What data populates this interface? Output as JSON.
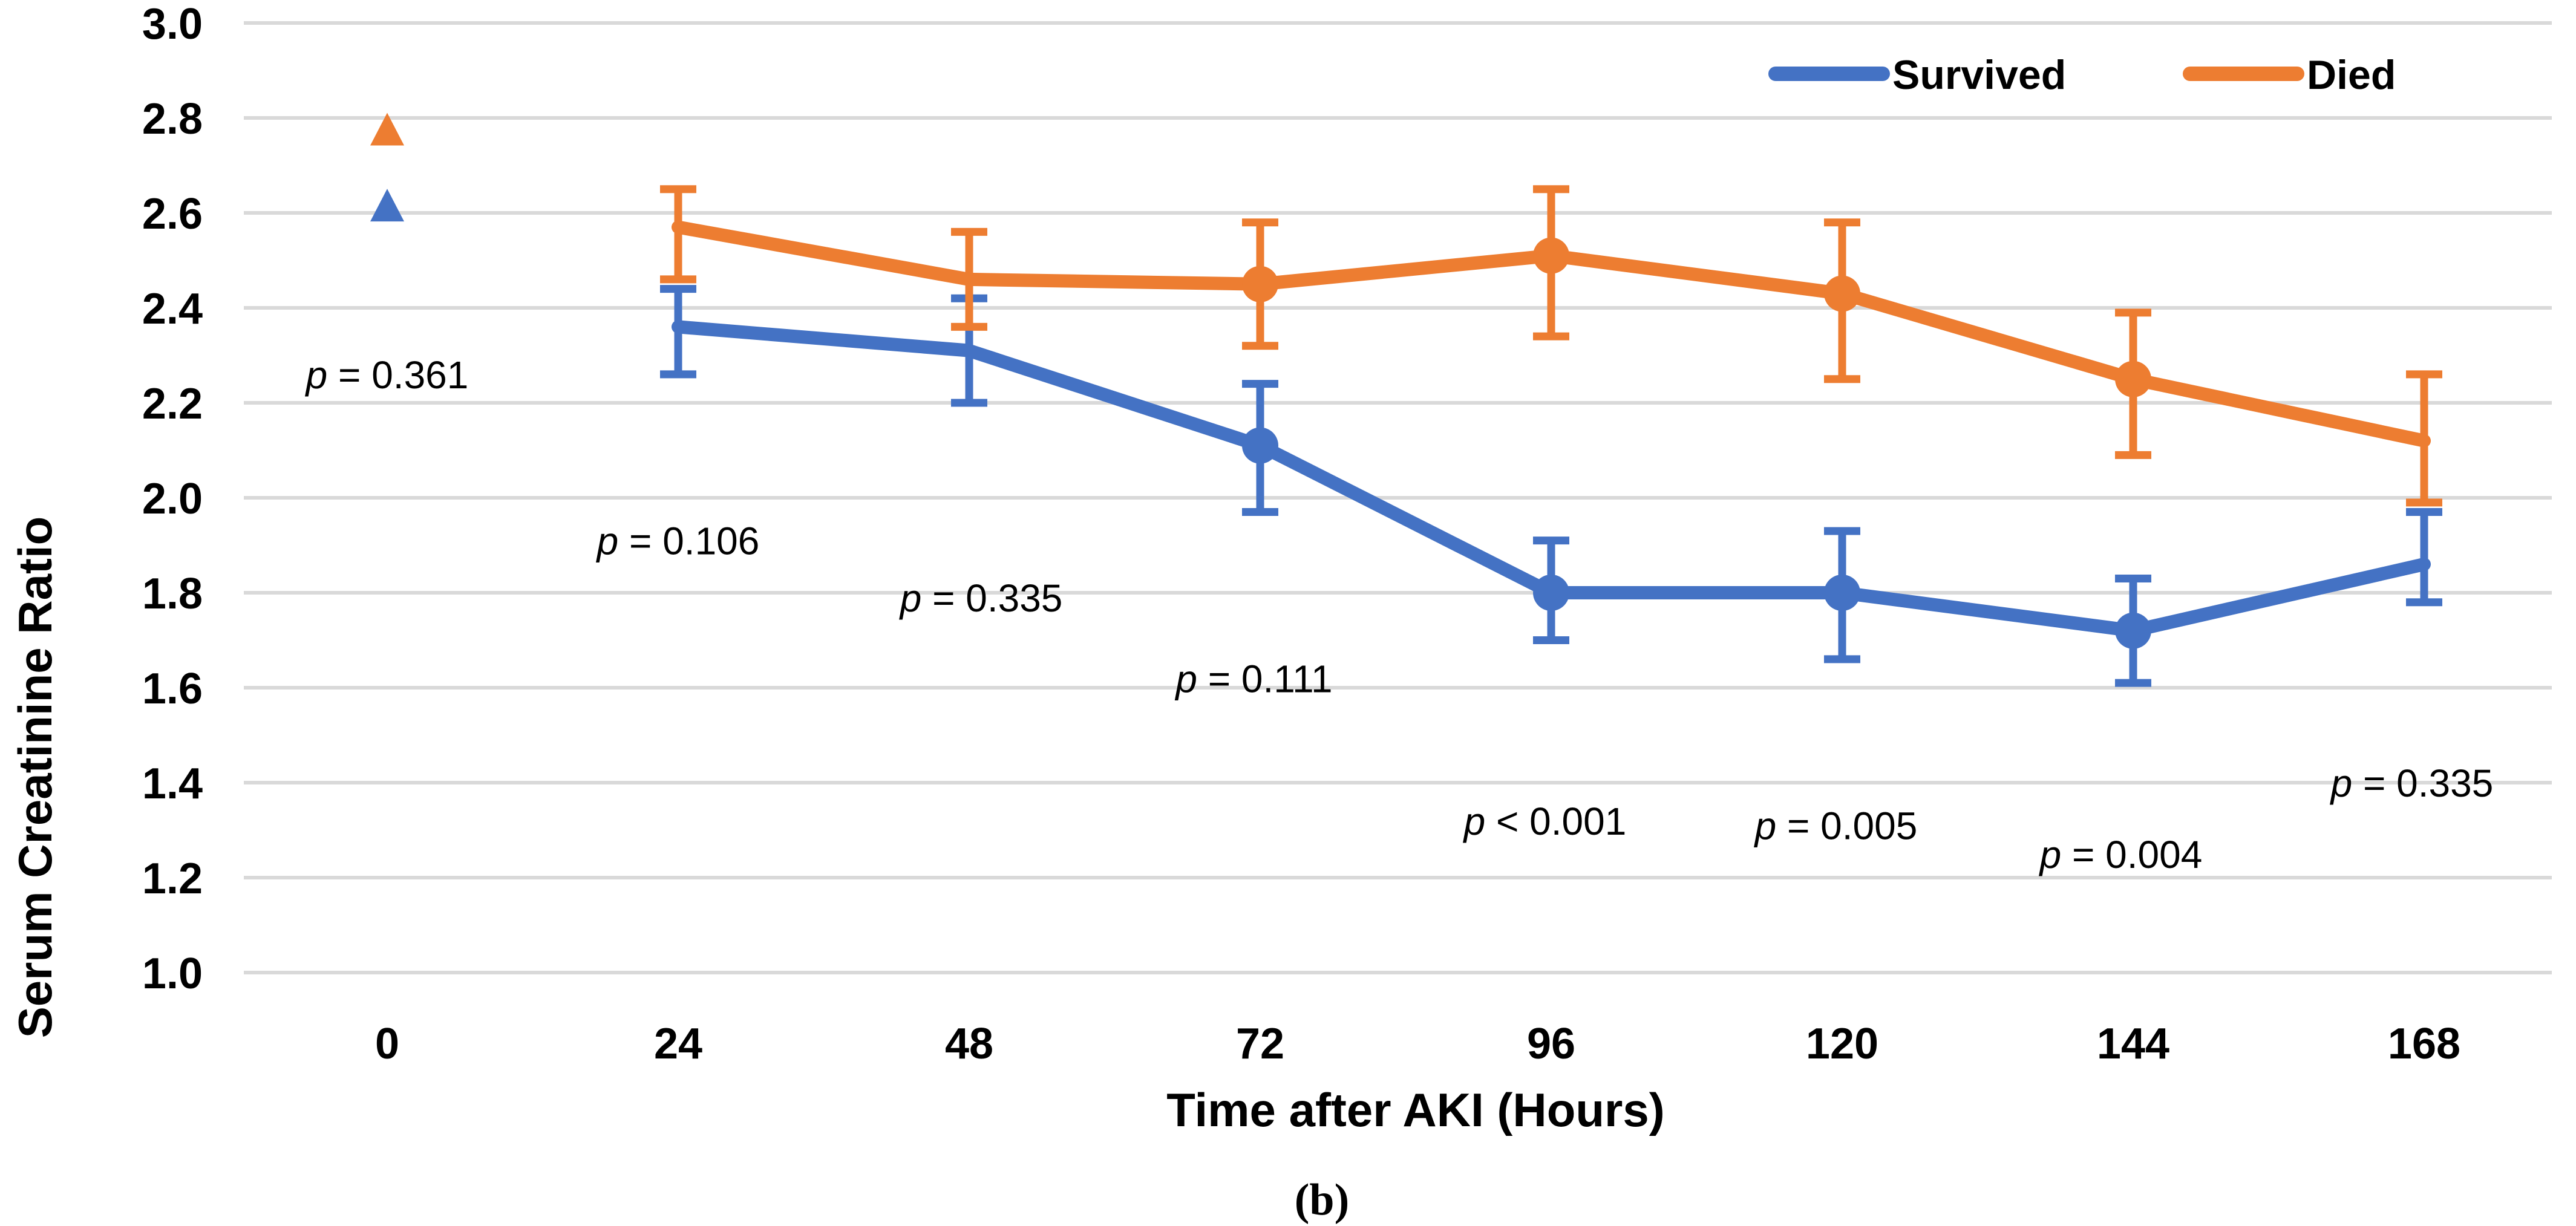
{
  "figure": {
    "caption": "(b)",
    "background": "#ffffff"
  },
  "chart_data": {
    "type": "line",
    "title": "",
    "xlabel": "Time after AKI (Hours)",
    "ylabel": "Serum Creatinine Ratio",
    "x_ticks": [
      0,
      24,
      48,
      72,
      96,
      120,
      144,
      168
    ],
    "y_tick_labels": [
      "3.0",
      "2.8",
      "2.6",
      "2.4",
      "2.2",
      "2.0",
      "1.8",
      "1.6",
      "1.4",
      "1.2",
      "1.0"
    ],
    "ylim": [
      1.0,
      3.0
    ],
    "grid": true,
    "colors": {
      "survived": "#4472C4",
      "died": "#ED7D31",
      "gridline": "#D9D9D9",
      "text": "#000000"
    },
    "legend": {
      "position": "top-right",
      "entries": [
        {
          "label": "Survived",
          "color": "#4472C4"
        },
        {
          "label": "Died",
          "color": "#ED7D31"
        }
      ]
    },
    "series": [
      {
        "name": "Survived",
        "color": "#4472C4",
        "baseline_marker": {
          "x": 0,
          "y": 2.61,
          "shape": "triangle"
        },
        "points": [
          {
            "x": 24,
            "y": 2.36,
            "err_lo": 2.26,
            "err_hi": 2.44
          },
          {
            "x": 48,
            "y": 2.31,
            "err_lo": 2.2,
            "err_hi": 2.42
          },
          {
            "x": 72,
            "y": 2.11,
            "err_lo": 1.97,
            "err_hi": 2.24
          },
          {
            "x": 96,
            "y": 1.8,
            "err_lo": 1.7,
            "err_hi": 1.91
          },
          {
            "x": 120,
            "y": 1.8,
            "err_lo": 1.66,
            "err_hi": 1.93
          },
          {
            "x": 144,
            "y": 1.72,
            "err_lo": 1.61,
            "err_hi": 1.83
          },
          {
            "x": 168,
            "y": 1.86,
            "err_lo": 1.78,
            "err_hi": 1.97
          }
        ],
        "dot_marker_x": [
          72,
          96,
          120,
          144
        ]
      },
      {
        "name": "Died",
        "color": "#ED7D31",
        "baseline_marker": {
          "x": 0,
          "y": 2.77,
          "shape": "triangle"
        },
        "points": [
          {
            "x": 24,
            "y": 2.57,
            "err_lo": 2.46,
            "err_hi": 2.65
          },
          {
            "x": 48,
            "y": 2.46,
            "err_lo": 2.36,
            "err_hi": 2.56
          },
          {
            "x": 72,
            "y": 2.45,
            "err_lo": 2.32,
            "err_hi": 2.58
          },
          {
            "x": 96,
            "y": 2.51,
            "err_lo": 2.34,
            "err_hi": 2.65
          },
          {
            "x": 120,
            "y": 2.43,
            "err_lo": 2.25,
            "err_hi": 2.58
          },
          {
            "x": 144,
            "y": 2.25,
            "err_lo": 2.09,
            "err_hi": 2.39
          },
          {
            "x": 168,
            "y": 2.12,
            "err_lo": 1.99,
            "err_hi": 2.26
          }
        ],
        "dot_marker_x": [
          72,
          96,
          120,
          144
        ]
      }
    ],
    "annotations": [
      {
        "text": "p = 0.361",
        "x": 0,
        "y": 2.26
      },
      {
        "text": "p = 0.106",
        "x": 24,
        "y": 1.91
      },
      {
        "text": "p = 0.335",
        "x": 49,
        "y": 1.79
      },
      {
        "text": "p = 0.111",
        "x": 71.5,
        "y": 1.62
      },
      {
        "text": "p < 0.001",
        "x": 95.5,
        "y": 1.32
      },
      {
        "text": "p = 0.005",
        "x": 119.5,
        "y": 1.31
      },
      {
        "text": "p = 0.004",
        "x": 143,
        "y": 1.25
      },
      {
        "text": "p = 0.335",
        "x": 167,
        "y": 1.4
      }
    ]
  }
}
